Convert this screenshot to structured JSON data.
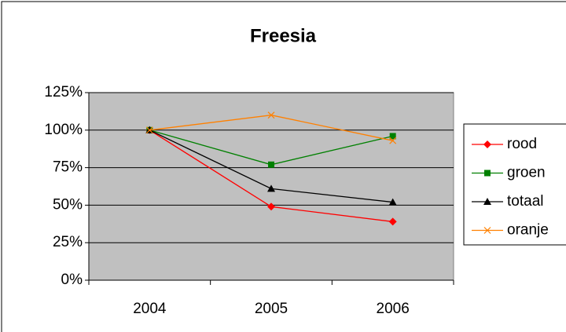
{
  "chart_data": {
    "type": "line",
    "title": "Freesia",
    "categories": [
      "2004",
      "2005",
      "2006"
    ],
    "series": [
      {
        "name": "rood",
        "color": "#ff0000",
        "marker": "diamond",
        "values": [
          100,
          49,
          39
        ]
      },
      {
        "name": "groen",
        "color": "#008000",
        "marker": "square",
        "values": [
          100,
          77,
          96
        ]
      },
      {
        "name": "totaal",
        "color": "#000000",
        "marker": "triangle",
        "values": [
          100,
          61,
          52
        ]
      },
      {
        "name": "oranje",
        "color": "#ff8000",
        "marker": "x",
        "values": [
          100,
          110,
          93
        ]
      }
    ],
    "ylim": [
      0,
      125
    ],
    "yticks": [
      {
        "value": 0,
        "label": "0%"
      },
      {
        "value": 25,
        "label": "25%"
      },
      {
        "value": 50,
        "label": "50%"
      },
      {
        "value": 75,
        "label": "75%"
      },
      {
        "value": 100,
        "label": "100%"
      },
      {
        "value": 125,
        "label": "125%"
      }
    ],
    "grid": true,
    "legend": "right"
  }
}
